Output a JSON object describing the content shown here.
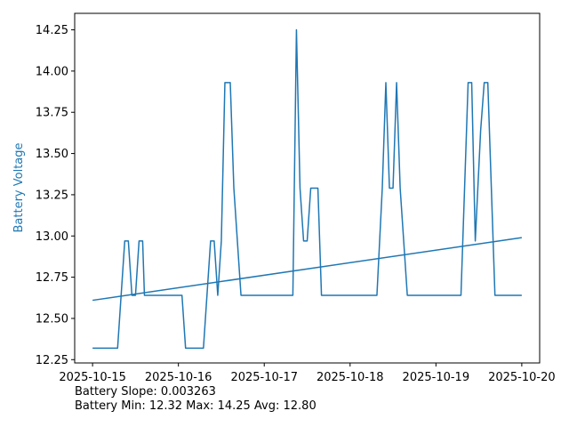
{
  "chart_data": {
    "type": "line",
    "title": "",
    "xlabel": "",
    "ylabel": "Battery Voltage",
    "ylabel_color": "#1f77b4",
    "line_color": "#1f77b4",
    "xlim": [
      "2025-10-14 19:00",
      "2025-10-20 05:00"
    ],
    "ylim": [
      12.23,
      14.35
    ],
    "x_ticks": [
      "2025-10-15",
      "2025-10-16",
      "2025-10-17",
      "2025-10-18",
      "2025-10-19",
      "2025-10-20"
    ],
    "y_ticks": [
      "12.25",
      "12.50",
      "12.75",
      "13.00",
      "13.25",
      "13.50",
      "13.75",
      "14.00",
      "14.25"
    ],
    "grid": false,
    "series": [
      {
        "values": [
          [
            "2025-10-15 00:00",
            12.32
          ],
          [
            "2025-10-15 07:00",
            12.32
          ],
          [
            "2025-10-15 09:00",
            12.97
          ],
          [
            "2025-10-15 10:00",
            12.97
          ],
          [
            "2025-10-15 11:00",
            12.64
          ],
          [
            "2025-10-15 12:00",
            12.64
          ],
          [
            "2025-10-15 13:00",
            12.97
          ],
          [
            "2025-10-15 14:00",
            12.97
          ],
          [
            "2025-10-15 14:30",
            12.64
          ],
          [
            "2025-10-16 01:00",
            12.64
          ],
          [
            "2025-10-16 02:00",
            12.32
          ],
          [
            "2025-10-16 07:00",
            12.32
          ],
          [
            "2025-10-16 09:00",
            12.97
          ],
          [
            "2025-10-16 10:00",
            12.97
          ],
          [
            "2025-10-16 11:00",
            12.64
          ],
          [
            "2025-10-16 12:00",
            12.97
          ],
          [
            "2025-10-16 13:00",
            13.93
          ],
          [
            "2025-10-16 14:30",
            13.93
          ],
          [
            "2025-10-16 15:30",
            13.29
          ],
          [
            "2025-10-16 17:30",
            12.64
          ],
          [
            "2025-10-17 08:00",
            12.64
          ],
          [
            "2025-10-17 09:00",
            14.25
          ],
          [
            "2025-10-17 10:00",
            13.29
          ],
          [
            "2025-10-17 11:00",
            12.97
          ],
          [
            "2025-10-17 12:00",
            12.97
          ],
          [
            "2025-10-17 13:00",
            13.29
          ],
          [
            "2025-10-17 15:00",
            13.29
          ],
          [
            "2025-10-17 16:00",
            12.64
          ],
          [
            "2025-10-18 07:30",
            12.64
          ],
          [
            "2025-10-18 09:00",
            13.29
          ],
          [
            "2025-10-18 10:00",
            13.93
          ],
          [
            "2025-10-18 11:00",
            13.29
          ],
          [
            "2025-10-18 12:00",
            13.29
          ],
          [
            "2025-10-18 13:00",
            13.93
          ],
          [
            "2025-10-18 14:00",
            13.29
          ],
          [
            "2025-10-18 16:00",
            12.64
          ],
          [
            "2025-10-19 07:00",
            12.64
          ],
          [
            "2025-10-19 09:00",
            13.93
          ],
          [
            "2025-10-19 10:00",
            13.93
          ],
          [
            "2025-10-19 11:00",
            12.97
          ],
          [
            "2025-10-19 12:30",
            13.64
          ],
          [
            "2025-10-19 13:30",
            13.93
          ],
          [
            "2025-10-19 14:30",
            13.93
          ],
          [
            "2025-10-19 16:30",
            12.64
          ],
          [
            "2025-10-20 00:00",
            12.64
          ]
        ]
      },
      {
        "values": [
          [
            "2025-10-15 00:00",
            12.61
          ],
          [
            "2025-10-20 00:00",
            12.99
          ]
        ]
      }
    ]
  },
  "stats": {
    "slope_line": "Battery Slope: 0.003263",
    "minmax_line": "Battery Min: 12.32 Max: 14.25 Avg: 12.80"
  }
}
